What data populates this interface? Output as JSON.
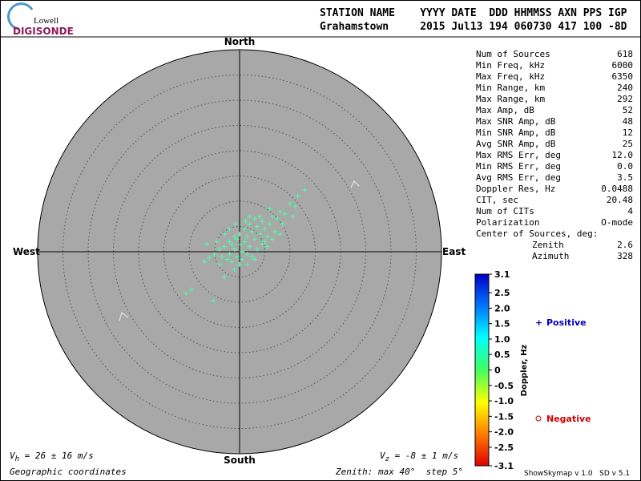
{
  "logo": {
    "top": "Lowell",
    "bottom": "DIGISONDE"
  },
  "header": {
    "line1": "STATION NAME    YYYY DATE  DDD HHMMSS AXN PPS IGP",
    "line2": "Grahamstown     2015 Jul13 194 060730 417 100 -8D"
  },
  "stats": [
    [
      "Num of Sources",
      "618"
    ],
    [
      "Min Freq, kHz",
      "6000"
    ],
    [
      "Max Freq, kHz",
      "6350"
    ],
    [
      "Min Range, km",
      "240"
    ],
    [
      "Max Range, km",
      "292"
    ],
    [
      "Max Amp, dB",
      "52"
    ],
    [
      "Max SNR Amp, dB",
      "48"
    ],
    [
      "Min SNR Amp, dB",
      "12"
    ],
    [
      "Avg SNR Amp, dB",
      "25"
    ],
    [
      "Max RMS Err, deg",
      "12.0"
    ],
    [
      "Min RMS Err, deg",
      "0.0"
    ],
    [
      "Avg RMS Err, deg",
      "3.5"
    ],
    [
      "Doppler Res, Hz",
      "0.0488"
    ],
    [
      "CIT, sec",
      "20.48"
    ],
    [
      "Num of CITs",
      "4"
    ],
    [
      "Polarization",
      "O-mode"
    ]
  ],
  "center": {
    "title": "Center of Sources, deg:",
    "zenith_label": "Zenith",
    "zenith": "2.6",
    "azimuth_label": "Azimuth",
    "azimuth": "328"
  },
  "directions": {
    "north": "North",
    "south": "South",
    "east": "East",
    "west": "West"
  },
  "footer": {
    "vh_v": "V",
    "vh_sub": "h",
    "vh_rest": " = 26 ± 16 m/s",
    "vz_v": "V",
    "vz_sub": "z",
    "vz_rest": " = -8 ± 1 m/s",
    "coords": "Geographic coordinates",
    "zenith": "Zenith: max 40°  step 5°",
    "version": "ShowSkymap v 1.0   SD v 5.1"
  },
  "colorbar": {
    "title": "Doppler, Hz",
    "positive": "Positive",
    "negative": "Negative",
    "lim": [
      -3.1,
      3.1
    ],
    "ticks": [
      3.1,
      2.5,
      {
        "value": 2,
        "label": "2.0"
      },
      1.5,
      {
        "value": 1,
        "label": "1.0"
      },
      0.5,
      0,
      -0.5,
      {
        "value": -1,
        "label": "-1.0"
      },
      -1.5,
      {
        "value": -2,
        "label": "-2.0"
      },
      -2.5,
      -3.1
    ]
  },
  "chart_data": {
    "type": "scatter",
    "color": "#4dffa6",
    "xlim": [
      -40,
      40
    ],
    "ylim": [
      -40,
      40
    ],
    "x": [
      0.2,
      -1,
      1,
      -2,
      2,
      0.5,
      -0.5,
      1.5,
      -1.5,
      3,
      2.5,
      4,
      3.5,
      5,
      4.5,
      6,
      6.5,
      7.5,
      8,
      9,
      10,
      11,
      12.9,
      11.5,
      10.5,
      8.5,
      7,
      5.5,
      6,
      4,
      3,
      2,
      1,
      0,
      -1,
      -2,
      -3,
      -4,
      -3.5,
      -2.5,
      -1.5,
      -0.5,
      0.5,
      1.5,
      2.5,
      3.5,
      4.5,
      5.5,
      -5,
      -6,
      -4.5,
      -3,
      0,
      -1,
      -6.5,
      -10.6,
      -9.5,
      -5.2,
      -3,
      1.5,
      3,
      -2,
      2,
      5,
      6.5,
      8,
      -4,
      -7,
      -0.8,
      1.2
    ],
    "values": [
      1.4,
      0.5,
      2,
      -0.5,
      1,
      0,
      2.5,
      3,
      1.5,
      2.5,
      4,
      3.5,
      5,
      4.5,
      6,
      5.5,
      7,
      6.5,
      8,
      7.5,
      9.5,
      9,
      12.2,
      11,
      7,
      5.5,
      4,
      3,
      8.5,
      7,
      6.5,
      5.5,
      4.5,
      3.5,
      3,
      2,
      1,
      0.5,
      -1,
      -1.5,
      -2,
      -1,
      -1.5,
      -0.5,
      -1,
      0.5,
      1.5,
      1,
      -0.5,
      -1.2,
      2,
      3.5,
      -2.5,
      -3.5,
      1.5,
      -8.3,
      -7.5,
      -9.7,
      -5,
      -2.5,
      -1.5,
      4.5,
      7,
      2,
      2.5,
      3.5,
      -2.5,
      -2,
      5.5,
      6
    ]
  }
}
